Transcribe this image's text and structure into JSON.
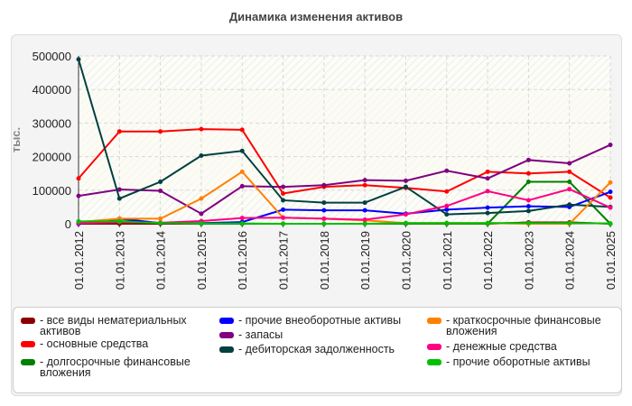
{
  "chart_data": {
    "type": "line",
    "title": "Динамика изменения активов",
    "ylabel": "тыс.",
    "xlabel": "",
    "ylim": [
      0,
      500000
    ],
    "yticks": [
      "0",
      "100000",
      "200000",
      "300000",
      "400000",
      "500000"
    ],
    "grid": true,
    "legend_placement": "bottom",
    "categories": [
      "01.01.2012",
      "01.01.2013",
      "01.01.2014",
      "01.01.2015",
      "01.01.2016",
      "01.01.2017",
      "01.01.2018",
      "01.01.2019",
      "01.01.2020",
      "01.01.2021",
      "01.01.2022",
      "01.01.2023",
      "01.01.2024",
      "01.01.2025"
    ],
    "series": [
      {
        "name": "- все виды нематериальных активов",
        "color": "#8b0000",
        "values": [
          0,
          0,
          0,
          0,
          0,
          0,
          0,
          0,
          0,
          0,
          0,
          4000,
          4000,
          0
        ]
      },
      {
        "name": "- основные средства",
        "color": "#ff0000",
        "values": [
          135000,
          275000,
          275000,
          282000,
          280000,
          90000,
          110000,
          115000,
          107000,
          96000,
          155000,
          150000,
          155000,
          78000
        ]
      },
      {
        "name": "- долгосрочные финансовые вложения",
        "color": "#008000",
        "values": [
          5000,
          8000,
          2000,
          0,
          0,
          0,
          0,
          0,
          0,
          0,
          0,
          125000,
          125000,
          0
        ]
      },
      {
        "name": "- прочие внеоборотные активы",
        "color": "#0000ff",
        "values": [
          0,
          15000,
          2000,
          2000,
          5000,
          42000,
          40000,
          40000,
          30000,
          42000,
          48000,
          52000,
          50000,
          95000
        ]
      },
      {
        "name": "- запасы",
        "color": "#800080",
        "values": [
          83000,
          102000,
          98000,
          30000,
          112000,
          110000,
          115000,
          130000,
          128000,
          158000,
          135000,
          190000,
          180000,
          235000
        ]
      },
      {
        "name": "- дебиторская задолженность",
        "color": "#004040",
        "values": [
          490000,
          75000,
          125000,
          203000,
          217000,
          70000,
          63000,
          63000,
          110000,
          28000,
          32000,
          38000,
          57000,
          50000
        ]
      },
      {
        "name": "- краткосрочные финансовые вложения",
        "color": "#ff8000",
        "values": [
          5000,
          15000,
          15000,
          75000,
          155000,
          18000,
          15000,
          10000,
          2000,
          2000,
          2000,
          0,
          0,
          123000
        ]
      },
      {
        "name": "- денежные средства",
        "color": "#ff0080",
        "values": [
          2000,
          5000,
          3000,
          8000,
          17000,
          18000,
          15000,
          12000,
          28000,
          53000,
          97000,
          70000,
          103000,
          48000
        ]
      },
      {
        "name": "- прочие оборотные активы",
        "color": "#00c000",
        "values": [
          7000,
          7000,
          2000,
          1000,
          1000,
          0,
          0,
          0,
          2000,
          2000,
          2000,
          2000,
          2000,
          1000
        ]
      }
    ]
  }
}
